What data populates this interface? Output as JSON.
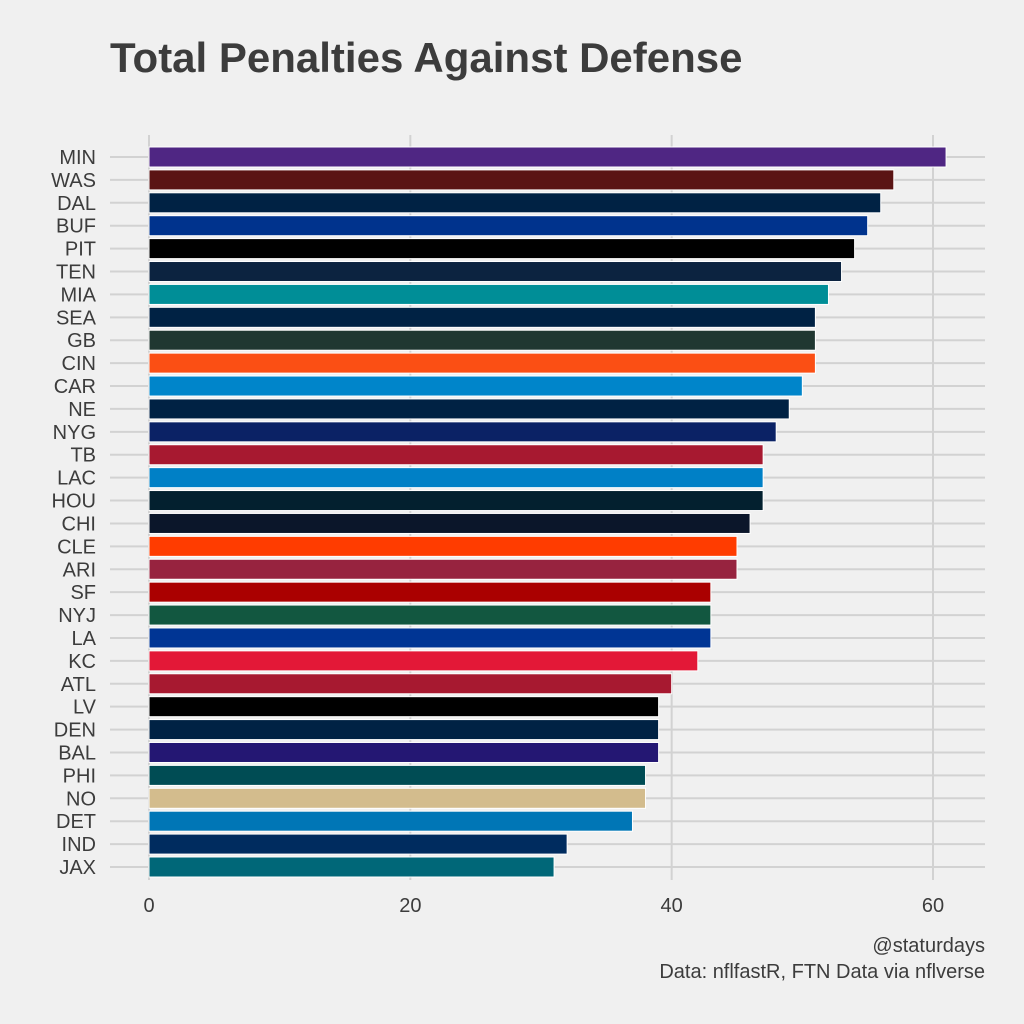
{
  "chart_data": {
    "type": "bar",
    "orientation": "horizontal",
    "title": "Total Penalties Against Defense",
    "xlabel": "",
    "ylabel": "",
    "xlim": [
      0,
      64
    ],
    "xticks": [
      0,
      20,
      40,
      60
    ],
    "grid": true,
    "legend": "none",
    "categories": [
      "MIN",
      "WAS",
      "DAL",
      "BUF",
      "PIT",
      "TEN",
      "MIA",
      "SEA",
      "GB",
      "CIN",
      "CAR",
      "NE",
      "NYG",
      "TB",
      "LAC",
      "HOU",
      "CHI",
      "CLE",
      "ARI",
      "SF",
      "NYJ",
      "LA",
      "KC",
      "ATL",
      "LV",
      "DEN",
      "BAL",
      "PHI",
      "NO",
      "DET",
      "IND",
      "JAX"
    ],
    "values": [
      61,
      57,
      56,
      55,
      54,
      53,
      52,
      51,
      51,
      51,
      50,
      49,
      48,
      47,
      47,
      47,
      46,
      45,
      45,
      43,
      43,
      43,
      42,
      40,
      39,
      39,
      39,
      38,
      38,
      37,
      32,
      31
    ],
    "colors": [
      "#4F2683",
      "#5A1414",
      "#002244",
      "#00338D",
      "#000000",
      "#0C2340",
      "#008E97",
      "#002244",
      "#203731",
      "#FB4F14",
      "#0085CA",
      "#002244",
      "#0B2265",
      "#A71930",
      "#0080C6",
      "#03202F",
      "#0B162A",
      "#FF3C00",
      "#97233F",
      "#AA0000",
      "#125740",
      "#003594",
      "#E31837",
      "#A71930",
      "#000000",
      "#002244",
      "#241773",
      "#004C54",
      "#D3BC8D",
      "#0076B6",
      "#002C5F",
      "#006778"
    ],
    "caption": [
      "@staturdays",
      "Data: nflfastR, FTN Data via nflverse"
    ]
  }
}
